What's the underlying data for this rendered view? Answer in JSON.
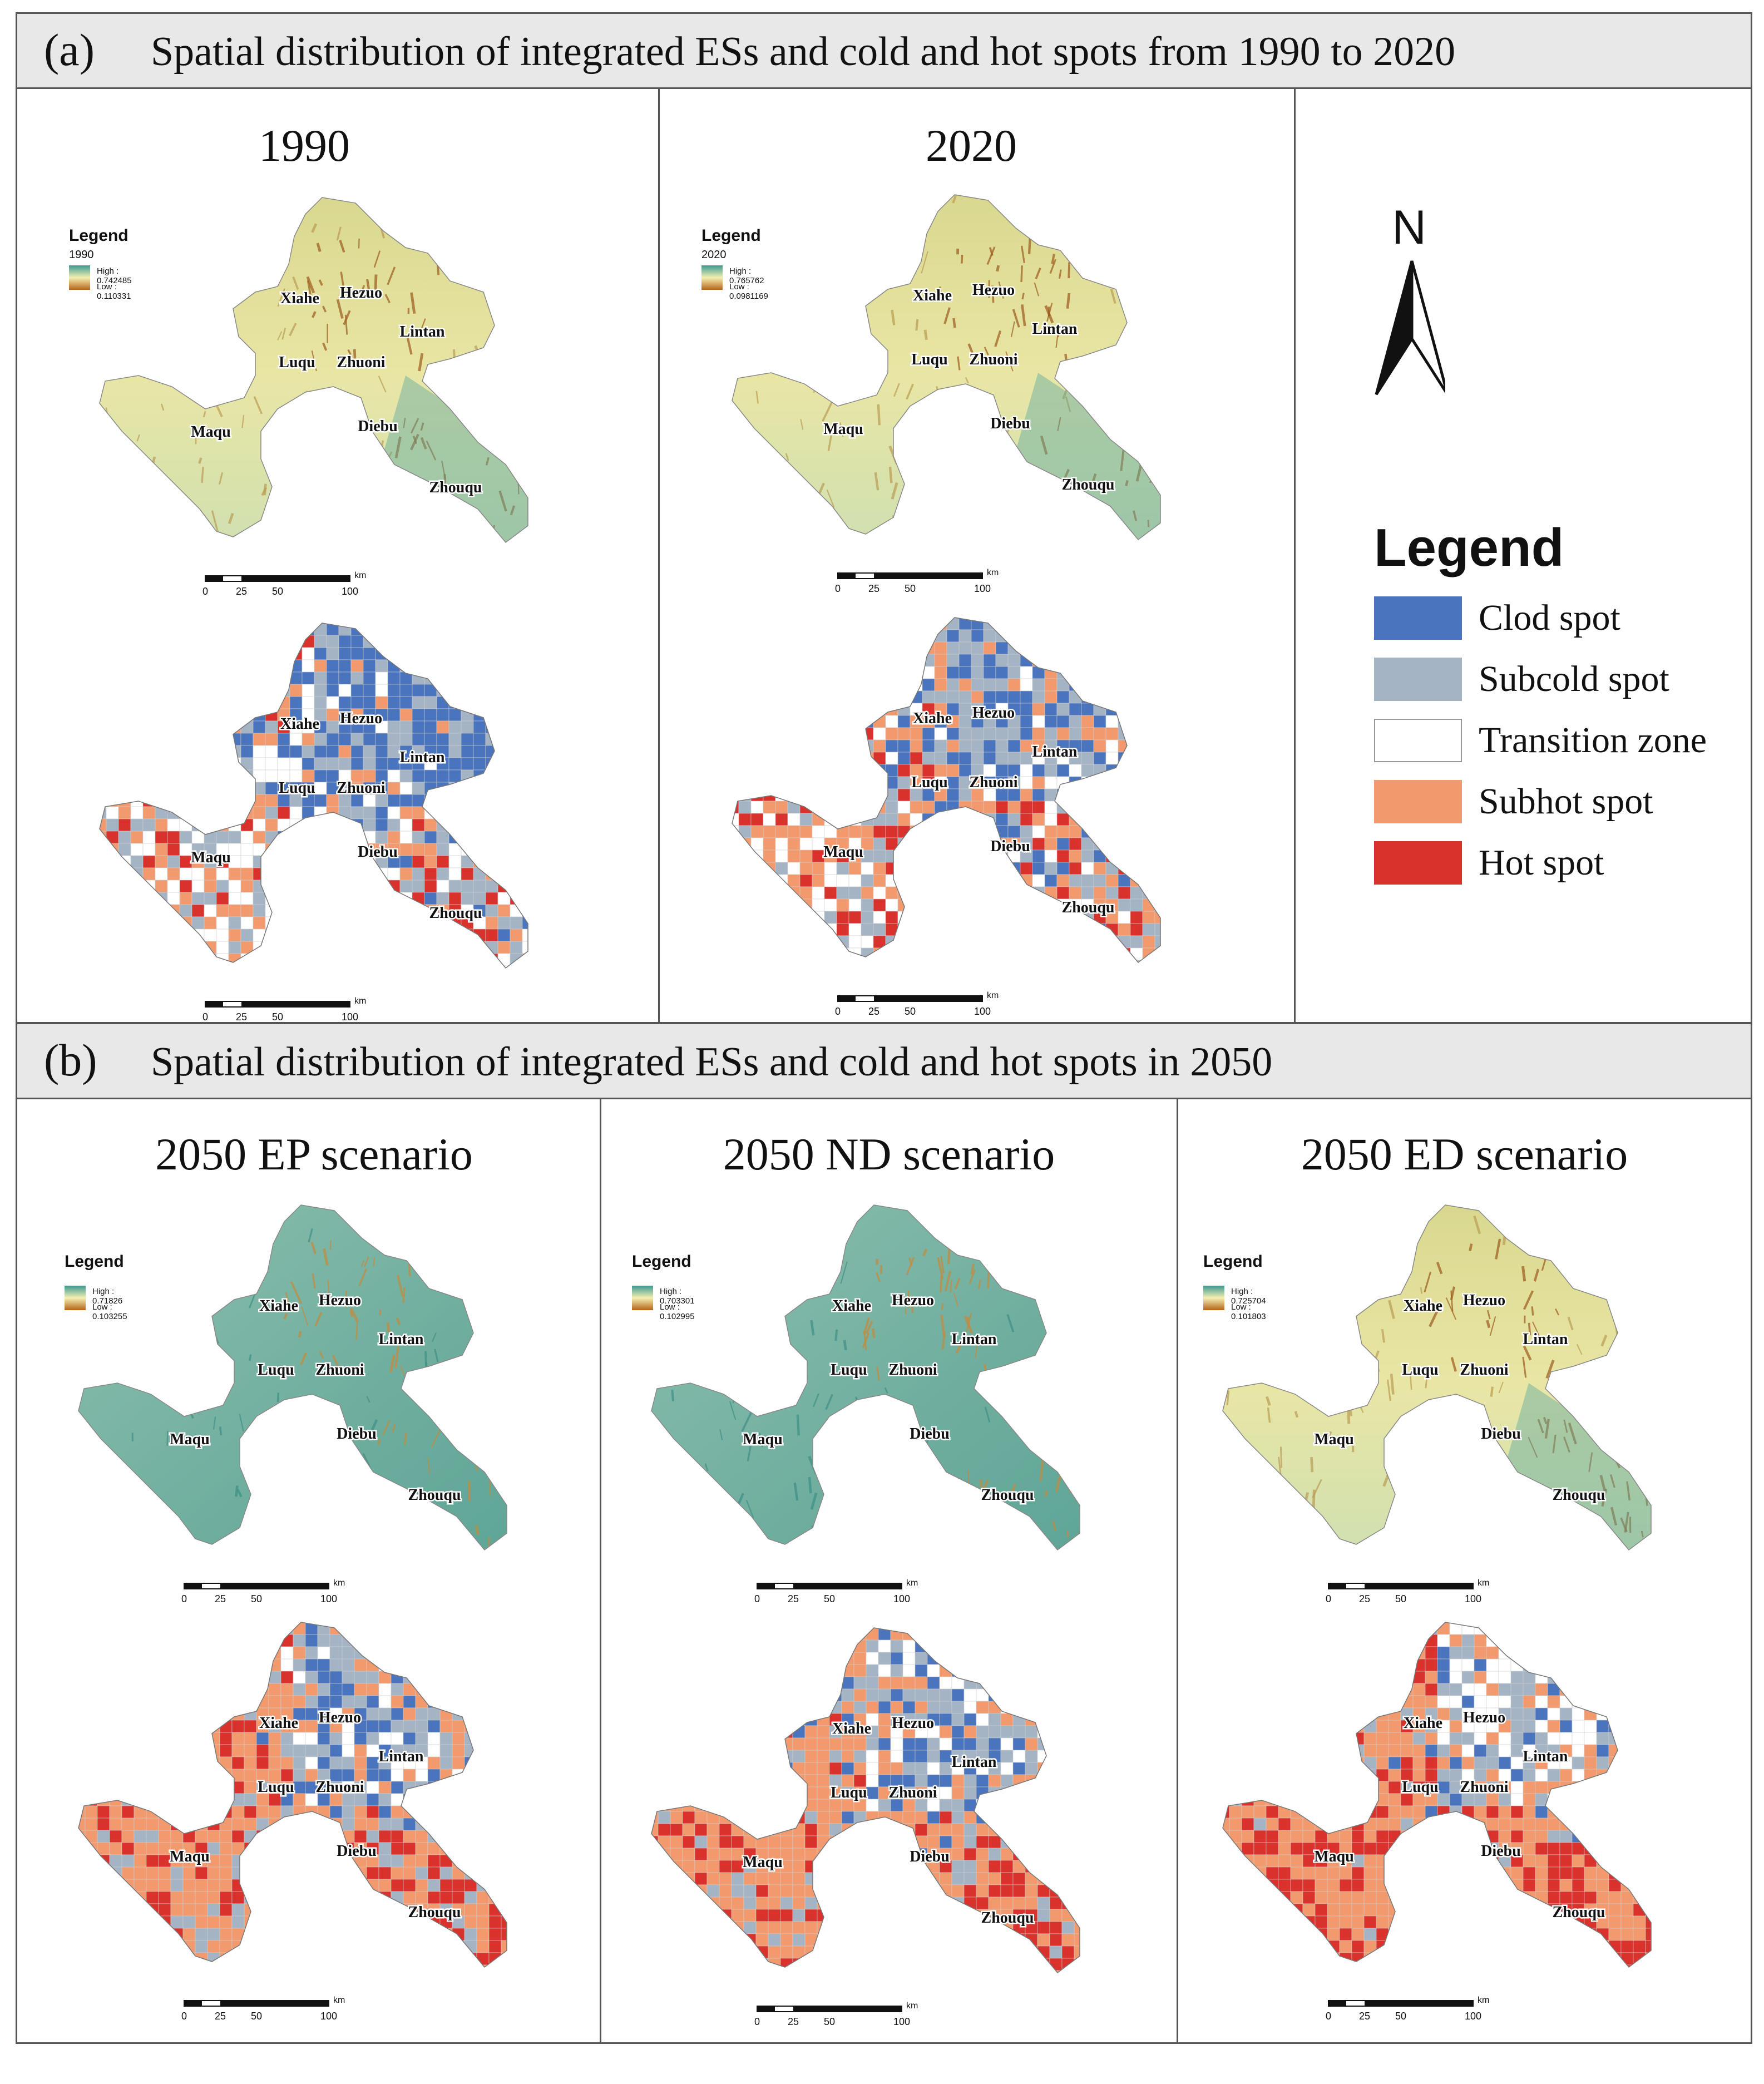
{
  "section_a": {
    "label": "(a)",
    "title": "Spatial distribution of integrated ESs and cold and hot spots from 1990 to 2020"
  },
  "section_b": {
    "label": "(b)",
    "title": "Spatial distribution of integrated ESs and cold and hot spots in 2050"
  },
  "towns": [
    "Xiahe",
    "Hezuo",
    "Lintan",
    "Luqu",
    "Zhuoni",
    "Maqu",
    "Diebu",
    "Zhouqu"
  ],
  "scalebar": {
    "ticks": [
      "0",
      "25",
      "50",
      "100"
    ],
    "unit": "km"
  },
  "north_label": "N",
  "colors": {
    "cold": "#4a74bd",
    "subcold": "#a4b4c4",
    "transition": "#ffffff",
    "subhot": "#f29a6e",
    "hot": "#d9312b"
  },
  "legend": {
    "title": "Legend",
    "items": [
      {
        "label": "Clod spot",
        "color": "#4a74bd"
      },
      {
        "label": "Subcold spot",
        "color": "#a4b4c4"
      },
      {
        "label": "Transition zone",
        "color": "#ffffff"
      },
      {
        "label": "Subhot spot",
        "color": "#f29a6e"
      },
      {
        "label": "Hot spot",
        "color": "#d9312b"
      }
    ]
  },
  "panels": [
    {
      "id": "p1990",
      "title": "1990",
      "legend_title": "Legend",
      "legend_year": "1990",
      "high": "High : 0.742485",
      "low": "Low : 0.110331",
      "tint": "yellow"
    },
    {
      "id": "p2020",
      "title": "2020",
      "legend_title": "Legend",
      "legend_year": "2020",
      "high": "High : 0.765762",
      "low": "Low : 0.0981169",
      "tint": "yellow"
    },
    {
      "id": "pEP",
      "title": "2050 EP scenario",
      "legend_title": "Legend",
      "legend_year": "",
      "high": "High : 0.71826",
      "low": "Low : 0.103255",
      "tint": "teal"
    },
    {
      "id": "pND",
      "title": "2050 ND scenario",
      "legend_title": "Legend",
      "legend_year": "",
      "high": "High : 0.703301",
      "low": "Low : 0.102995",
      "tint": "teal"
    },
    {
      "id": "pED",
      "title": "2050 ED scenario",
      "legend_title": "Legend",
      "legend_year": "",
      "high": "High : 0.725704",
      "low": "Low : 0.101803",
      "tint": "yellow"
    }
  ]
}
